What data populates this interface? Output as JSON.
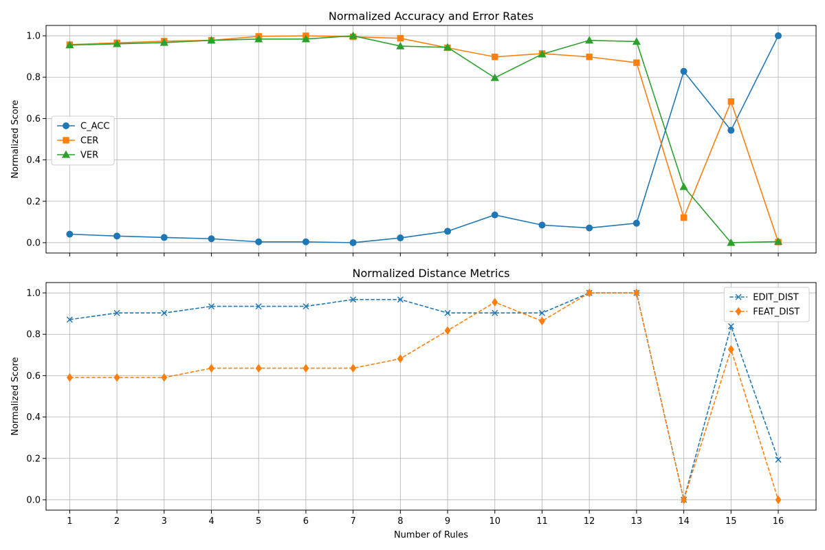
{
  "figure": {
    "xlabel": "Number of Rules"
  },
  "chart_data": [
    {
      "type": "line",
      "title": "Normalized Accuracy and Error Rates",
      "xlabel": "",
      "ylabel": "Normalized Score",
      "x": [
        1,
        2,
        3,
        4,
        5,
        6,
        7,
        8,
        9,
        10,
        11,
        12,
        13,
        14,
        15,
        16
      ],
      "xlim": [
        0.5,
        16.8
      ],
      "ylim": [
        -0.05,
        1.05
      ],
      "yticks": [
        0.0,
        0.2,
        0.4,
        0.6,
        0.8,
        1.0
      ],
      "ytick_labels": [
        "0.0",
        "0.2",
        "0.4",
        "0.6",
        "0.8",
        "1.0"
      ],
      "grid": true,
      "legend": "center-left",
      "series": [
        {
          "name": "C_ACC",
          "color": "#1f77b4",
          "marker": "circle",
          "linestyle": "solid",
          "values": [
            0.041,
            0.032,
            0.025,
            0.019,
            0.004,
            0.004,
            0.0,
            0.023,
            0.055,
            0.134,
            0.085,
            0.071,
            0.094,
            0.828,
            0.543,
            1.0
          ]
        },
        {
          "name": "CER",
          "color": "#ff7f0e",
          "marker": "square",
          "linestyle": "solid",
          "values": [
            0.957,
            0.966,
            0.974,
            0.978,
            0.997,
            1.0,
            0.995,
            0.988,
            0.942,
            0.898,
            0.914,
            0.898,
            0.87,
            0.121,
            0.682,
            0.003
          ]
        },
        {
          "name": "VER",
          "color": "#2ca02c",
          "marker": "triangle",
          "linestyle": "solid",
          "values": [
            0.955,
            0.961,
            0.967,
            0.978,
            0.984,
            0.984,
            1.0,
            0.95,
            0.944,
            0.797,
            0.911,
            0.978,
            0.972,
            0.27,
            0.0,
            0.005
          ]
        }
      ]
    },
    {
      "type": "line",
      "title": "Normalized Distance Metrics",
      "xlabel": "Number of Rules",
      "ylabel": "Normalized Score",
      "x": [
        1,
        2,
        3,
        4,
        5,
        6,
        7,
        8,
        9,
        10,
        11,
        12,
        13,
        14,
        15,
        16
      ],
      "xtick_labels": [
        "1",
        "2",
        "3",
        "4",
        "5",
        "6",
        "7",
        "8",
        "9",
        "10",
        "11",
        "12",
        "13",
        "14",
        "15",
        "16"
      ],
      "xlim": [
        0.5,
        16.8
      ],
      "ylim": [
        -0.05,
        1.05
      ],
      "yticks": [
        0.0,
        0.2,
        0.4,
        0.6,
        0.8,
        1.0
      ],
      "ytick_labels": [
        "0.0",
        "0.2",
        "0.4",
        "0.6",
        "0.8",
        "1.0"
      ],
      "grid": true,
      "legend": "top-right",
      "series": [
        {
          "name": "EDIT_DIST",
          "color": "#1f77b4",
          "marker": "x",
          "linestyle": "dashed",
          "values": [
            0.871,
            0.903,
            0.903,
            0.935,
            0.935,
            0.935,
            0.968,
            0.968,
            0.903,
            0.903,
            0.903,
            1.0,
            1.0,
            0.0,
            0.839,
            0.194
          ]
        },
        {
          "name": "FEAT_DIST",
          "color": "#ff7f0e",
          "marker": "diamond",
          "linestyle": "dashed",
          "values": [
            0.591,
            0.591,
            0.591,
            0.636,
            0.636,
            0.636,
            0.636,
            0.682,
            0.818,
            0.955,
            0.864,
            1.0,
            1.0,
            0.0,
            0.727,
            0.0
          ]
        }
      ]
    }
  ]
}
